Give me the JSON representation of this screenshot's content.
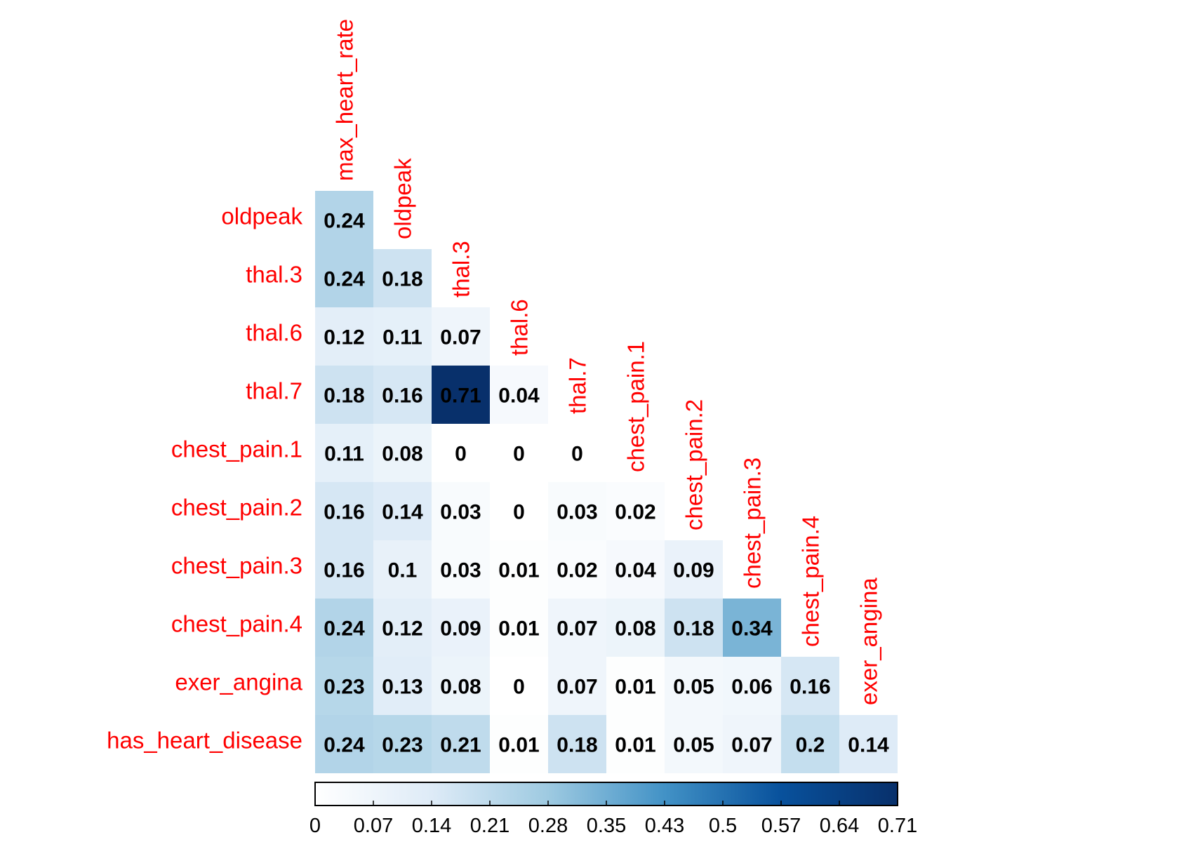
{
  "chart_data": {
    "type": "heatmap",
    "title": "",
    "rows": [
      "oldpeak",
      "thal.3",
      "thal.6",
      "thal.7",
      "chest_pain.1",
      "chest_pain.2",
      "chest_pain.3",
      "chest_pain.4",
      "exer_angina",
      "has_heart_disease"
    ],
    "columns": [
      "max_heart_rate",
      "oldpeak",
      "thal.3",
      "thal.6",
      "thal.7",
      "chest_pain.1",
      "chest_pain.2",
      "chest_pain.3",
      "chest_pain.4",
      "exer_angina"
    ],
    "values": [
      [
        "0.24"
      ],
      [
        "0.24",
        "0.18"
      ],
      [
        "0.12",
        "0.11",
        "0.07"
      ],
      [
        "0.18",
        "0.16",
        "0.71",
        "0.04"
      ],
      [
        "0.11",
        "0.08",
        "0",
        "0",
        "0"
      ],
      [
        "0.16",
        "0.14",
        "0.03",
        "0",
        "0.03",
        "0.02"
      ],
      [
        "0.16",
        "0.1",
        "0.03",
        "0.01",
        "0.02",
        "0.04",
        "0.09"
      ],
      [
        "0.24",
        "0.12",
        "0.09",
        "0.01",
        "0.07",
        "0.08",
        "0.18",
        "0.34"
      ],
      [
        "0.23",
        "0.13",
        "0.08",
        "0",
        "0.07",
        "0.01",
        "0.05",
        "0.06",
        "0.16"
      ],
      [
        "0.24",
        "0.23",
        "0.21",
        "0.01",
        "0.18",
        "0.01",
        "0.05",
        "0.07",
        "0.2",
        "0.14"
      ]
    ],
    "color_scale": {
      "min": 0,
      "max": 0.71,
      "colors": [
        "#ffffff",
        "#deebf7",
        "#9ecae1",
        "#4292c6",
        "#08519c",
        "#08306b"
      ],
      "ticks": [
        "0",
        "0.07",
        "0.14",
        "0.21",
        "0.28",
        "0.35",
        "0.43",
        "0.5",
        "0.57",
        "0.64",
        "0.71"
      ]
    },
    "label_color": "#ff0000"
  }
}
